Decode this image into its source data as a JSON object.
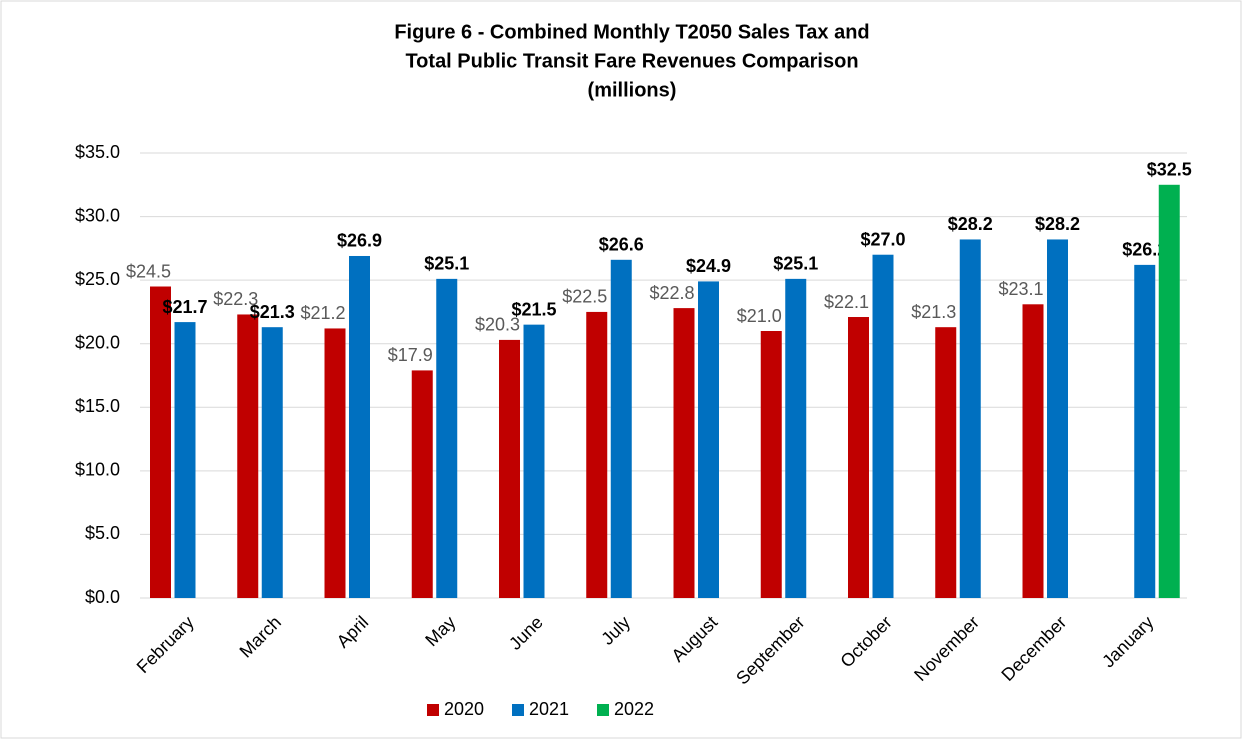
{
  "chart_data": {
    "type": "bar",
    "title": [
      "Figure 6 - Combined Monthly T2050 Sales Tax and",
      "Total Public Transit Fare Revenues Comparison",
      "(millions)"
    ],
    "categories": [
      "February",
      "March",
      "April",
      "May",
      "June",
      "July",
      "August",
      "September",
      "October",
      "November",
      "December",
      "January"
    ],
    "series": [
      {
        "name": "2020",
        "color": "#c00000",
        "label_color": "#595959",
        "label_bold": false,
        "values": [
          24.5,
          22.3,
          21.2,
          17.9,
          20.3,
          22.5,
          22.8,
          21.0,
          22.1,
          21.3,
          23.1,
          null
        ],
        "value_labels": [
          "$24.5",
          "$22.3",
          "$21.2",
          "$17.9",
          "$20.3",
          "$22.5",
          "$22.8",
          "$21.0",
          "$22.1",
          "$21.3",
          "$23.1",
          null
        ]
      },
      {
        "name": "2021",
        "color": "#0070c0",
        "label_color": "#000000",
        "label_bold": true,
        "values": [
          21.7,
          21.3,
          26.9,
          25.1,
          21.5,
          26.6,
          24.9,
          25.1,
          27.0,
          28.2,
          28.2,
          26.2
        ],
        "value_labels": [
          "$21.7",
          "$21.3",
          "$26.9",
          "$25.1",
          "$21.5",
          "$26.6",
          "$24.9",
          "$25.1",
          "$27.0",
          "$28.2",
          "$28.2",
          "$26.2"
        ]
      },
      {
        "name": "2022",
        "color": "#00b050",
        "label_color": "#000000",
        "label_bold": true,
        "values": [
          null,
          null,
          null,
          null,
          null,
          null,
          null,
          null,
          null,
          null,
          null,
          32.5
        ],
        "value_labels": [
          null,
          null,
          null,
          null,
          null,
          null,
          null,
          null,
          null,
          null,
          null,
          "$32.5"
        ]
      }
    ],
    "ylim": [
      0,
      35
    ],
    "yticks": [
      {
        "value": 0,
        "label": "$0.0"
      },
      {
        "value": 5,
        "label": "$5.0"
      },
      {
        "value": 10,
        "label": "$10.0"
      },
      {
        "value": 15,
        "label": "$15.0"
      },
      {
        "value": 20,
        "label": "$20.0"
      },
      {
        "value": 25,
        "label": "$25.0"
      },
      {
        "value": 30,
        "label": "$30.0"
      },
      {
        "value": 35,
        "label": "$35.0"
      }
    ],
    "grid": true,
    "legend": "bottom"
  }
}
